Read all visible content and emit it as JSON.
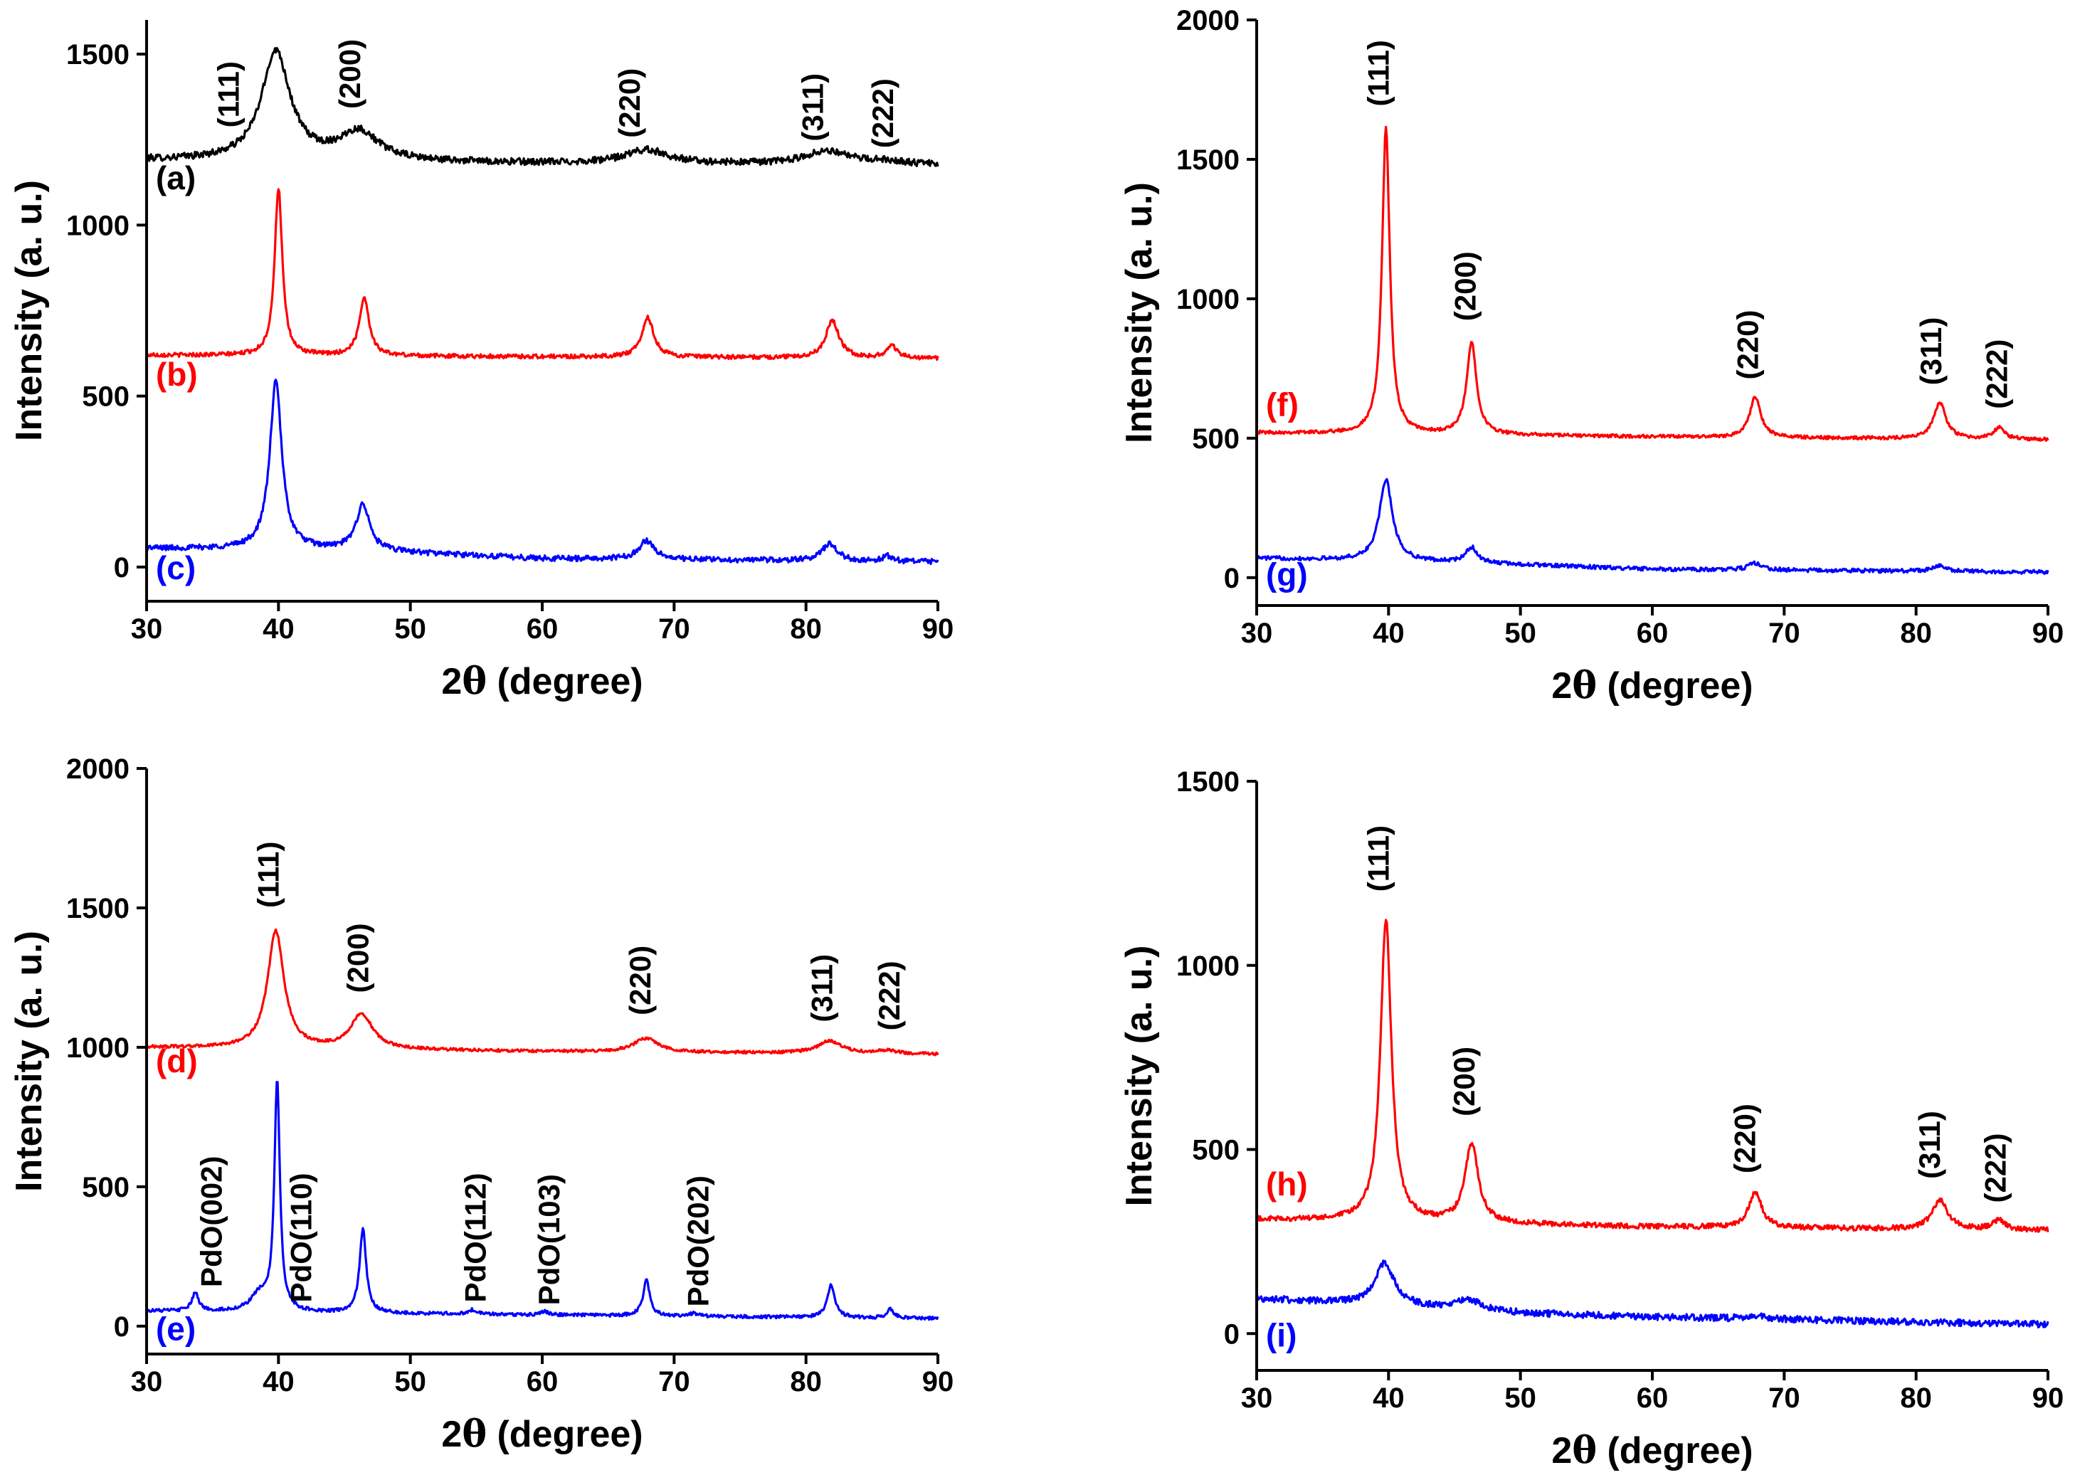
{
  "chart_data": [
    {
      "id": "p1",
      "type": "line",
      "xlabel_prefix": "2",
      "xlabel_symbol": "θ",
      "xlabel_suffix": " (degree)",
      "ylabel": "Intensity (a. u.)",
      "xlim": [
        30,
        90
      ],
      "ylim": [
        -100,
        1600
      ],
      "xticks": [
        30,
        40,
        50,
        60,
        70,
        80,
        90
      ],
      "yticks": [
        0,
        500,
        1000,
        1500
      ],
      "series": [
        {
          "name": "(a)",
          "color": "#000000",
          "baseline": [
            [
              30,
              1190
            ],
            [
              60,
              1180
            ],
            [
              90,
              1175
            ]
          ],
          "noise": 10,
          "peaks": [
            [
              39.8,
              320,
              1.3
            ],
            [
              46.1,
              85,
              1.8
            ],
            [
              67.9,
              40,
              2.0
            ],
            [
              81.6,
              40,
              2.0
            ],
            [
              86.2,
              10,
              1.5
            ]
          ]
        },
        {
          "name": "(b)",
          "color": "#ff0000",
          "baseline": [
            [
              30,
              620
            ],
            [
              60,
              615
            ],
            [
              90,
              610
            ]
          ],
          "noise": 6,
          "peaks": [
            [
              40.0,
              490,
              0.35
            ],
            [
              46.5,
              170,
              0.45
            ],
            [
              68.0,
              115,
              0.55
            ],
            [
              82.0,
              110,
              0.6
            ],
            [
              86.5,
              35,
              0.5
            ]
          ]
        },
        {
          "name": "(c)",
          "color": "#0000ff",
          "baseline": [
            [
              30,
              55
            ],
            [
              45,
              50
            ],
            [
              60,
              25
            ],
            [
              90,
              15
            ]
          ],
          "noise": 8,
          "peaks": [
            [
              39.8,
              490,
              0.55
            ],
            [
              46.4,
              135,
              0.6
            ],
            [
              67.9,
              55,
              0.7
            ],
            [
              81.8,
              50,
              0.7
            ],
            [
              86.2,
              15,
              0.5
            ]
          ]
        }
      ],
      "peak_labels": [
        {
          "text": "(111)",
          "x": 37.0,
          "y": 1285
        },
        {
          "text": "(200)",
          "x": 46.2,
          "y": 1340
        },
        {
          "text": "(220)",
          "x": 67.4,
          "y": 1255
        },
        {
          "text": "(311)",
          "x": 81.3,
          "y": 1245
        },
        {
          "text": "(222)",
          "x": 86.6,
          "y": 1225
        }
      ],
      "curve_labels": [
        {
          "text": "(a)",
          "x": 30.7,
          "y": 1105,
          "color": "#000000"
        },
        {
          "text": "(b)",
          "x": 30.7,
          "y": 530,
          "color": "#ff0000"
        },
        {
          "text": "(c)",
          "x": 30.7,
          "y": -35,
          "color": "#0000ff"
        }
      ]
    },
    {
      "id": "p2",
      "type": "line",
      "xlabel_prefix": "2",
      "xlabel_symbol": "θ",
      "xlabel_suffix": " (degree)",
      "ylabel": "Intensity (a. u.)",
      "xlim": [
        30,
        90
      ],
      "ylim": [
        -100,
        2000
      ],
      "xticks": [
        30,
        40,
        50,
        60,
        70,
        80,
        90
      ],
      "yticks": [
        0,
        500,
        1000,
        1500,
        2000
      ],
      "series": [
        {
          "name": "(f)",
          "color": "#ff0000",
          "baseline": [
            [
              30,
              520
            ],
            [
              60,
              505
            ],
            [
              90,
              495
            ]
          ],
          "noise": 6,
          "peaks": [
            [
              39.8,
              1100,
              0.35
            ],
            [
              46.3,
              330,
              0.45
            ],
            [
              67.8,
              145,
              0.5
            ],
            [
              81.8,
              130,
              0.55
            ],
            [
              86.3,
              40,
              0.5
            ]
          ]
        },
        {
          "name": "(g)",
          "color": "#0000ff",
          "baseline": [
            [
              30,
              70
            ],
            [
              45,
              55
            ],
            [
              60,
              30
            ],
            [
              90,
              20
            ]
          ],
          "noise": 7,
          "peaks": [
            [
              39.8,
              290,
              0.6
            ],
            [
              46.3,
              55,
              0.5
            ],
            [
              67.8,
              25,
              0.6
            ],
            [
              81.8,
              20,
              0.6
            ]
          ]
        }
      ],
      "peak_labels": [
        {
          "text": "(111)",
          "x": 40.0,
          "y": 1690
        },
        {
          "text": "(200)",
          "x": 46.6,
          "y": 920
        },
        {
          "text": "(220)",
          "x": 68.0,
          "y": 710
        },
        {
          "text": "(311)",
          "x": 81.9,
          "y": 690
        },
        {
          "text": "(222)",
          "x": 86.9,
          "y": 605
        }
      ],
      "curve_labels": [
        {
          "text": "(f)",
          "x": 30.7,
          "y": 580,
          "color": "#ff0000"
        },
        {
          "text": "(g)",
          "x": 30.7,
          "y": -30,
          "color": "#0000ff"
        }
      ]
    },
    {
      "id": "p3",
      "type": "line",
      "xlabel_prefix": "2",
      "xlabel_symbol": "θ",
      "xlabel_suffix": " (degree)",
      "ylabel": "Intensity (a. u.)",
      "xlim": [
        30,
        90
      ],
      "ylim": [
        -100,
        2000
      ],
      "xticks": [
        30,
        40,
        50,
        60,
        70,
        80,
        90
      ],
      "yticks": [
        0,
        500,
        1000,
        1500,
        2000
      ],
      "series": [
        {
          "name": "(d)",
          "color": "#ff0000",
          "baseline": [
            [
              30,
              1000
            ],
            [
              60,
              985
            ],
            [
              90,
              975
            ]
          ],
          "noise": 5,
          "peaks": [
            [
              39.8,
              420,
              0.75
            ],
            [
              46.3,
              125,
              1.0
            ],
            [
              67.9,
              50,
              1.1
            ],
            [
              81.8,
              45,
              1.1
            ],
            [
              86.2,
              12,
              0.8
            ]
          ]
        },
        {
          "name": "(e)",
          "color": "#0000ff",
          "baseline": [
            [
              30,
              55
            ],
            [
              60,
              40
            ],
            [
              90,
              28
            ]
          ],
          "noise": 6,
          "peaks": [
            [
              33.7,
              65,
              0.3
            ],
            [
              38.6,
              60,
              0.8
            ],
            [
              39.9,
              820,
              0.25
            ],
            [
              46.4,
              300,
              0.3
            ],
            [
              54.7,
              15,
              0.4
            ],
            [
              60.2,
              12,
              0.4
            ],
            [
              67.9,
              130,
              0.3
            ],
            [
              71.5,
              10,
              0.4
            ],
            [
              81.9,
              115,
              0.35
            ],
            [
              86.4,
              30,
              0.3
            ]
          ]
        }
      ],
      "peak_labels": [
        {
          "text": "(111)",
          "x": 40.0,
          "y": 1500
        },
        {
          "text": "(200)",
          "x": 46.8,
          "y": 1195
        },
        {
          "text": "(220)",
          "x": 68.2,
          "y": 1115
        },
        {
          "text": "(311)",
          "x": 82.0,
          "y": 1090
        },
        {
          "text": "(222)",
          "x": 87.1,
          "y": 1060
        },
        {
          "text": "PdO(002)",
          "x": 35.7,
          "y": 140
        },
        {
          "text": "PdO(110)",
          "x": 42.5,
          "y": 85
        },
        {
          "text": "PdO(112)",
          "x": 55.7,
          "y": 85
        },
        {
          "text": "PdO(103)",
          "x": 61.3,
          "y": 75
        },
        {
          "text": "PdO(202)",
          "x": 72.6,
          "y": 70
        }
      ],
      "curve_labels": [
        {
          "text": "(d)",
          "x": 30.7,
          "y": 910,
          "color": "#ff0000"
        },
        {
          "text": "(e)",
          "x": 30.7,
          "y": -50,
          "color": "#0000ff"
        }
      ]
    },
    {
      "id": "p4",
      "type": "line",
      "xlabel_prefix": "2",
      "xlabel_symbol": "θ",
      "xlabel_suffix": " (degree)",
      "ylabel": "Intensity (a. u.)",
      "xlim": [
        30,
        90
      ],
      "ylim": [
        -100,
        1500
      ],
      "xticks": [
        30,
        40,
        50,
        60,
        70,
        80,
        90
      ],
      "yticks": [
        0,
        500,
        1000,
        1500
      ],
      "series": [
        {
          "name": "(h)",
          "color": "#ff0000",
          "baseline": [
            [
              30,
              310
            ],
            [
              60,
              290
            ],
            [
              90,
              280
            ]
          ],
          "noise": 7,
          "peaks": [
            [
              39.8,
              820,
              0.5
            ],
            [
              46.3,
              215,
              0.6
            ],
            [
              67.8,
              95,
              0.6
            ],
            [
              81.8,
              80,
              0.7
            ],
            [
              86.3,
              25,
              0.6
            ]
          ]
        },
        {
          "name": "(i)",
          "color": "#0000ff",
          "baseline": [
            [
              30,
              95
            ],
            [
              40,
              75
            ],
            [
              50,
              55
            ],
            [
              60,
              45
            ],
            [
              90,
              25
            ]
          ],
          "noise": 9,
          "peaks": [
            [
              39.7,
              115,
              0.9
            ],
            [
              46.0,
              30,
              1.2
            ],
            [
              67.8,
              8,
              1.0
            ]
          ]
        }
      ],
      "peak_labels": [
        {
          "text": "(111)",
          "x": 40.0,
          "y": 1200
        },
        {
          "text": "(200)",
          "x": 46.5,
          "y": 590
        },
        {
          "text": "(220)",
          "x": 67.8,
          "y": 435
        },
        {
          "text": "(311)",
          "x": 81.8,
          "y": 420
        },
        {
          "text": "(222)",
          "x": 86.8,
          "y": 355
        }
      ],
      "curve_labels": [
        {
          "text": "(h)",
          "x": 30.7,
          "y": 375,
          "color": "#ff0000"
        },
        {
          "text": "(i)",
          "x": 30.7,
          "y": -35,
          "color": "#0000ff"
        }
      ]
    }
  ]
}
